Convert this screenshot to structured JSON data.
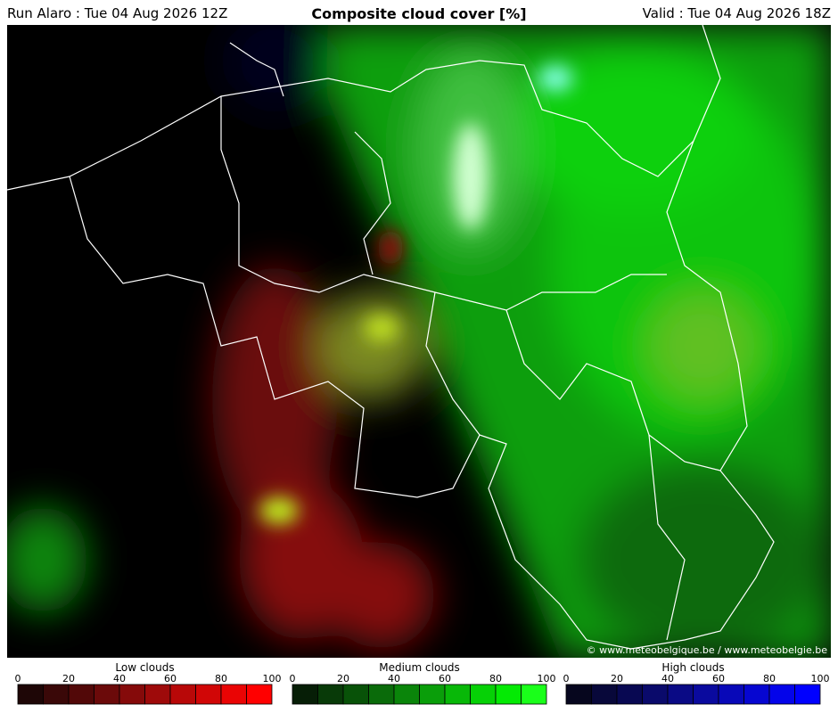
{
  "header": {
    "run": "Run Alaro : Tue 04 Aug 2026 12Z",
    "title": "Composite cloud cover [%]",
    "valid": "Valid : Tue 04 Aug 2026 18Z"
  },
  "copyright": "© www.meteobelgique.be / www.meteobelgie.be",
  "colorbars": [
    {
      "label": "Low clouds",
      "range": [
        0,
        100
      ],
      "ticks": [
        0,
        20,
        40,
        60,
        80,
        100
      ],
      "colors": [
        "#1e0606",
        "#3a0808",
        "#520808",
        "#6b0a0a",
        "#850a0a",
        "#9e0a0a",
        "#b80808",
        "#d10606",
        "#ea0404",
        "#ff0000"
      ]
    },
    {
      "label": "Medium clouds",
      "range": [
        0,
        100
      ],
      "ticks": [
        0,
        20,
        40,
        60,
        80,
        100
      ],
      "colors": [
        "#061e06",
        "#083a08",
        "#085208",
        "#0a6b0a",
        "#0a850a",
        "#0a9e0a",
        "#08b808",
        "#06d106",
        "#04ea04",
        "#1aff1a"
      ]
    },
    {
      "label": "High clouds",
      "range": [
        0,
        100
      ],
      "ticks": [
        0,
        20,
        40,
        60,
        80,
        100
      ],
      "colors": [
        "#06061e",
        "#08083a",
        "#080852",
        "#0a0a6b",
        "#0a0a85",
        "#0a0a9e",
        "#0808b8",
        "#0606d1",
        "#0404ea",
        "#0000ff"
      ]
    }
  ]
}
